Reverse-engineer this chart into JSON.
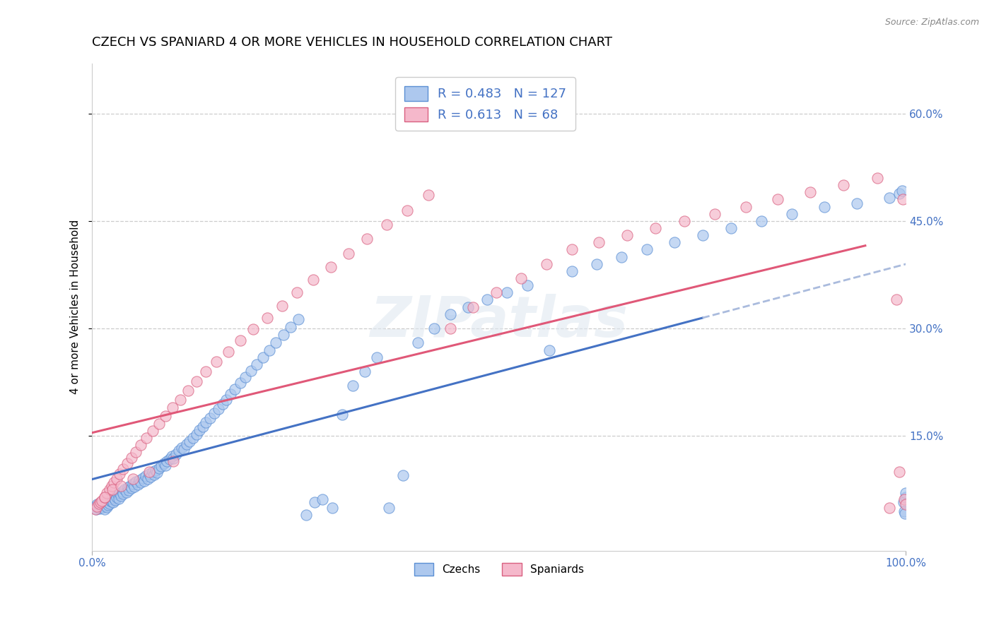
{
  "title": "CZECH VS SPANIARD 4 OR MORE VEHICLES IN HOUSEHOLD CORRELATION CHART",
  "source": "Source: ZipAtlas.com",
  "ylabel": "4 or more Vehicles in Household",
  "xlim": [
    0.0,
    1.0
  ],
  "ylim": [
    -0.01,
    0.67
  ],
  "ytick_vals": [
    0.15,
    0.3,
    0.45,
    0.6
  ],
  "ytick_labels": [
    "15.0%",
    "30.0%",
    "45.0%",
    "60.0%"
  ],
  "czech_fill_color": "#adc8ee",
  "czech_edge_color": "#5b8fd4",
  "spaniard_fill_color": "#f5b8cb",
  "spaniard_edge_color": "#d96080",
  "czech_line_color": "#4472c4",
  "spaniard_line_color": "#e05878",
  "dashed_line_color": "#aabbdd",
  "legend_R_czech": "0.483",
  "legend_N_czech": "127",
  "legend_R_spaniard": "0.613",
  "legend_N_spaniard": "68",
  "background_color": "#ffffff",
  "grid_color": "#cccccc",
  "title_fontsize": 13,
  "axis_label_fontsize": 11,
  "tick_fontsize": 11,
  "legend_text_color": "#4472c4",
  "watermark": "ZIPatlas",
  "czech_x": [
    0.003,
    0.004,
    0.005,
    0.006,
    0.007,
    0.008,
    0.009,
    0.01,
    0.011,
    0.012,
    0.013,
    0.014,
    0.015,
    0.016,
    0.017,
    0.018,
    0.019,
    0.02,
    0.021,
    0.022,
    0.024,
    0.025,
    0.026,
    0.027,
    0.028,
    0.03,
    0.032,
    0.033,
    0.034,
    0.035,
    0.037,
    0.038,
    0.04,
    0.042,
    0.044,
    0.045,
    0.047,
    0.048,
    0.05,
    0.052,
    0.054,
    0.056,
    0.058,
    0.06,
    0.062,
    0.064,
    0.066,
    0.068,
    0.07,
    0.072,
    0.074,
    0.076,
    0.078,
    0.08,
    0.082,
    0.085,
    0.088,
    0.09,
    0.092,
    0.095,
    0.098,
    0.1,
    0.103,
    0.107,
    0.11,
    0.113,
    0.116,
    0.12,
    0.124,
    0.128,
    0.132,
    0.136,
    0.14,
    0.145,
    0.15,
    0.155,
    0.16,
    0.165,
    0.17,
    0.175,
    0.182,
    0.188,
    0.195,
    0.202,
    0.21,
    0.218,
    0.226,
    0.235,
    0.244,
    0.253,
    0.263,
    0.273,
    0.283,
    0.295,
    0.307,
    0.32,
    0.335,
    0.35,
    0.365,
    0.382,
    0.4,
    0.42,
    0.44,
    0.462,
    0.485,
    0.51,
    0.535,
    0.562,
    0.59,
    0.62,
    0.65,
    0.682,
    0.716,
    0.75,
    0.785,
    0.822,
    0.86,
    0.9,
    0.94,
    0.98,
    0.992,
    0.995,
    0.997,
    0.998,
    0.999,
    1.0,
    1.0
  ],
  "czech_y": [
    0.05,
    0.052,
    0.048,
    0.055,
    0.051,
    0.053,
    0.049,
    0.054,
    0.056,
    0.05,
    0.052,
    0.055,
    0.048,
    0.057,
    0.053,
    0.051,
    0.058,
    0.054,
    0.056,
    0.06,
    0.059,
    0.062,
    0.058,
    0.064,
    0.061,
    0.065,
    0.068,
    0.063,
    0.07,
    0.066,
    0.072,
    0.069,
    0.075,
    0.071,
    0.078,
    0.074,
    0.08,
    0.077,
    0.083,
    0.079,
    0.086,
    0.082,
    0.088,
    0.085,
    0.091,
    0.087,
    0.094,
    0.09,
    0.097,
    0.093,
    0.1,
    0.096,
    0.102,
    0.099,
    0.105,
    0.108,
    0.112,
    0.109,
    0.115,
    0.118,
    0.122,
    0.119,
    0.125,
    0.13,
    0.134,
    0.132,
    0.138,
    0.142,
    0.147,
    0.152,
    0.158,
    0.163,
    0.169,
    0.175,
    0.182,
    0.188,
    0.195,
    0.201,
    0.208,
    0.215,
    0.224,
    0.232,
    0.241,
    0.25,
    0.26,
    0.27,
    0.28,
    0.291,
    0.302,
    0.313,
    0.04,
    0.058,
    0.062,
    0.05,
    0.18,
    0.22,
    0.24,
    0.26,
    0.05,
    0.095,
    0.28,
    0.3,
    0.32,
    0.33,
    0.34,
    0.35,
    0.36,
    0.27,
    0.38,
    0.39,
    0.4,
    0.41,
    0.42,
    0.43,
    0.44,
    0.45,
    0.46,
    0.47,
    0.475,
    0.482,
    0.488,
    0.492,
    0.058,
    0.045,
    0.042,
    0.065,
    0.07
  ],
  "spaniard_x": [
    0.004,
    0.006,
    0.008,
    0.01,
    0.012,
    0.015,
    0.018,
    0.021,
    0.024,
    0.027,
    0.03,
    0.034,
    0.038,
    0.043,
    0.048,
    0.054,
    0.06,
    0.067,
    0.074,
    0.082,
    0.09,
    0.099,
    0.108,
    0.118,
    0.128,
    0.14,
    0.153,
    0.167,
    0.182,
    0.198,
    0.215,
    0.233,
    0.252,
    0.272,
    0.293,
    0.315,
    0.338,
    0.362,
    0.387,
    0.413,
    0.44,
    0.468,
    0.497,
    0.527,
    0.558,
    0.59,
    0.623,
    0.657,
    0.692,
    0.728,
    0.765,
    0.803,
    0.842,
    0.882,
    0.923,
    0.965,
    0.98,
    0.988,
    0.992,
    0.996,
    0.998,
    1.0,
    0.015,
    0.025,
    0.035,
    0.05,
    0.07,
    0.1
  ],
  "spaniard_y": [
    0.048,
    0.052,
    0.056,
    0.058,
    0.06,
    0.065,
    0.07,
    0.075,
    0.08,
    0.085,
    0.09,
    0.097,
    0.104,
    0.112,
    0.12,
    0.128,
    0.137,
    0.147,
    0.157,
    0.167,
    0.178,
    0.19,
    0.201,
    0.213,
    0.226,
    0.24,
    0.254,
    0.268,
    0.283,
    0.299,
    0.315,
    0.332,
    0.35,
    0.368,
    0.386,
    0.405,
    0.425,
    0.445,
    0.465,
    0.486,
    0.3,
    0.33,
    0.35,
    0.37,
    0.39,
    0.41,
    0.42,
    0.43,
    0.44,
    0.45,
    0.46,
    0.47,
    0.48,
    0.49,
    0.5,
    0.51,
    0.05,
    0.34,
    0.1,
    0.48,
    0.062,
    0.055,
    0.065,
    0.075,
    0.08,
    0.09,
    0.1,
    0.115
  ]
}
